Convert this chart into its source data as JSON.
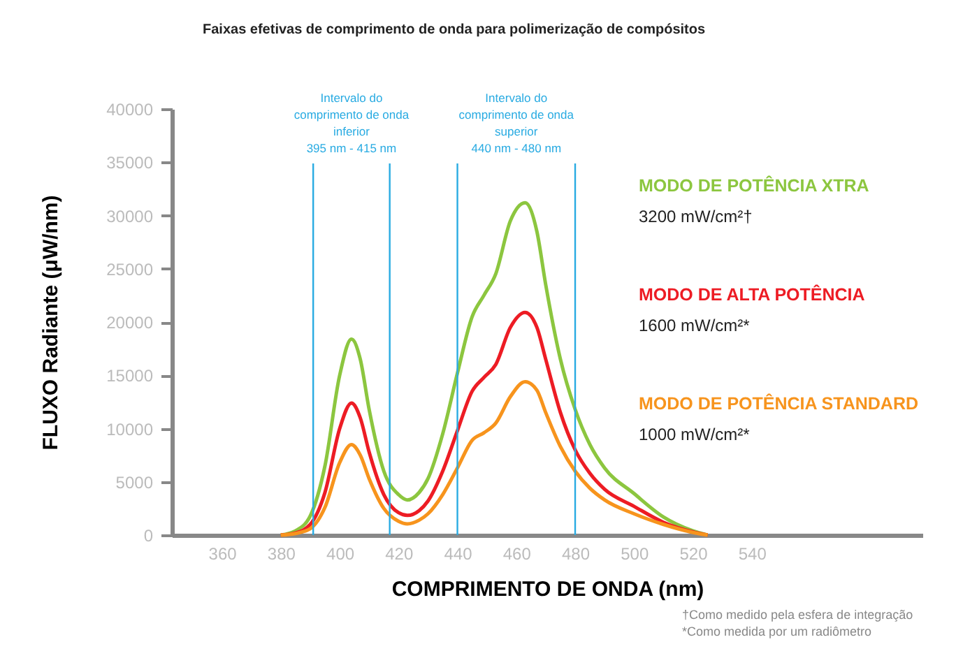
{
  "chart_data": {
    "type": "line",
    "title": "Faixas efetivas de comprimento de onda para polimerização de compósitos",
    "xlabel": "COMPRIMENTO DE ONDA (nm)",
    "ylabel": "FLUXO Radiante (μW/nm)",
    "x": [
      380,
      385,
      390,
      395,
      400,
      404,
      407,
      410,
      415,
      420,
      423,
      427,
      430,
      435,
      440,
      445,
      449,
      453,
      458,
      463,
      467,
      470,
      475,
      480,
      485,
      490,
      500,
      510,
      520,
      525
    ],
    "series": [
      {
        "name": "MODO DE POTÊNCIA XTRA",
        "color": "#8cc63f",
        "values": [
          0,
          400,
          1800,
          6500,
          15000,
          18400,
          16500,
          11800,
          6000,
          3800,
          3300,
          4000,
          5300,
          9500,
          15200,
          20500,
          22500,
          24500,
          29500,
          31200,
          28500,
          23500,
          16500,
          11800,
          8500,
          6300,
          3900,
          1700,
          400,
          0
        ]
      },
      {
        "name": "MODO DE ALTA POTÊNCIA",
        "color": "#ed1c24",
        "values": [
          0,
          200,
          1000,
          4000,
          10000,
          12400,
          11000,
          7800,
          3800,
          2100,
          1850,
          2300,
          3200,
          6000,
          9800,
          13500,
          14800,
          16000,
          19500,
          20900,
          19500,
          16500,
          11500,
          8000,
          5800,
          4300,
          2700,
          1200,
          300,
          0
        ]
      },
      {
        "name": "MODO DE POTÊNCIA STANDARD",
        "color": "#f7941d",
        "values": [
          0,
          150,
          600,
          2600,
          6800,
          8500,
          7500,
          5300,
          2500,
          1300,
          1050,
          1400,
          2000,
          3800,
          6300,
          8900,
          9600,
          10500,
          13000,
          14400,
          13600,
          11500,
          8300,
          6000,
          4400,
          3300,
          2000,
          1000,
          250,
          0
        ]
      }
    ],
    "xlim": [
      343,
      598
    ],
    "xticks": [
      360,
      380,
      400,
      420,
      440,
      460,
      480,
      500,
      520,
      540
    ],
    "ylim": [
      0,
      40000
    ],
    "yticks": [
      0,
      5000,
      10000,
      15000,
      20000,
      25000,
      30000,
      35000,
      40000
    ],
    "ref_lines": [
      {
        "axis": "x",
        "value": 391,
        "color": "#29abe2"
      },
      {
        "axis": "x",
        "value": 417,
        "color": "#29abe2"
      },
      {
        "axis": "x",
        "value": 440,
        "color": "#29abe2"
      },
      {
        "axis": "x",
        "value": 480,
        "color": "#29abe2"
      }
    ],
    "annotations": [
      "3200 mW/cm²†",
      "1600 mW/cm²*",
      "1000 mW/cm²*",
      "†Como medido pela esfera de integração",
      "*Como medida por um radiômetro",
      "Intervalo  do\ncomprimento de onda\ninferior\n395 nm - 415 nm",
      "Intervalo  do\ncomprimento de onda\nsuperior\n440 nm - 480 nm"
    ],
    "legend": "right"
  }
}
